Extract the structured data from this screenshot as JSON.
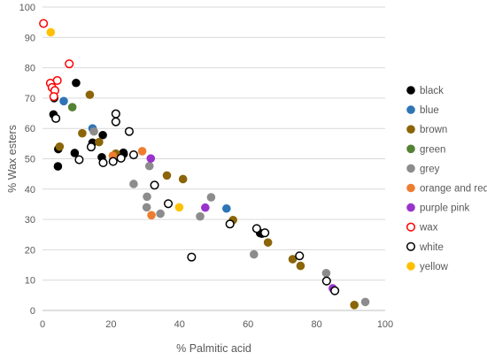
{
  "chart_data": {
    "type": "scatter",
    "xlabel": "% Palmitic acid",
    "ylabel": "% Wax esters",
    "xlim": [
      0,
      100
    ],
    "ylim": [
      0,
      100
    ],
    "x_ticks": [
      "0",
      "20",
      "40",
      "60",
      "80",
      "100"
    ],
    "y_ticks": [
      "0",
      "10",
      "20",
      "30",
      "40",
      "50",
      "60",
      "70",
      "80",
      "90",
      "100"
    ],
    "x_tick_values": [
      0,
      20,
      40,
      60,
      80,
      100
    ],
    "y_tick_values": [
      0,
      10,
      20,
      30,
      40,
      50,
      60,
      70,
      80,
      90,
      100
    ],
    "grid": "horizontal",
    "legend_position": "right",
    "series": [
      {
        "name": "black",
        "color": "#000000",
        "fill": "#000000",
        "stroke": "#000000",
        "points": [
          [
            3.4,
            70
          ],
          [
            3.2,
            64.6
          ],
          [
            4.6,
            53.2
          ],
          [
            4.5,
            47.5
          ],
          [
            9.4,
            51.9
          ],
          [
            9.8,
            75
          ],
          [
            14.6,
            55.3
          ],
          [
            17.3,
            50.5
          ],
          [
            17.6,
            57.8
          ],
          [
            23.6,
            52
          ],
          [
            23.7,
            51.6
          ],
          [
            63.5,
            25.5
          ],
          [
            64,
            25.3
          ]
        ]
      },
      {
        "name": "blue",
        "color": "#2E75B6",
        "fill": "#2E75B6",
        "stroke": "#2E75B6",
        "points": [
          [
            6.2,
            69
          ],
          [
            14.6,
            60
          ],
          [
            53.7,
            33.6
          ]
        ]
      },
      {
        "name": "brown",
        "color": "#8B6508",
        "fill": "#8B6508",
        "stroke": "#8B6508",
        "points": [
          [
            5,
            54
          ],
          [
            11.6,
            58.4
          ],
          [
            13.8,
            71.1
          ],
          [
            16.5,
            55.5
          ],
          [
            21.4,
            51.7
          ],
          [
            36.3,
            44.5
          ],
          [
            41,
            43.3
          ],
          [
            55.6,
            29.8
          ],
          [
            65.8,
            22.4
          ],
          [
            73,
            16.9
          ],
          [
            75.3,
            14.7
          ],
          [
            91,
            1.8
          ]
        ]
      },
      {
        "name": "green",
        "color": "#548235",
        "fill": "#548235",
        "stroke": "#548235",
        "points": [
          [
            8.7,
            67
          ]
        ]
      },
      {
        "name": "grey",
        "color": "#8C8C8C",
        "fill": "#8C8C8C",
        "stroke": "#8C8C8C",
        "points": [
          [
            15,
            59
          ],
          [
            26.6,
            41.7
          ],
          [
            30.5,
            37.5
          ],
          [
            30.4,
            34
          ],
          [
            31.2,
            47.6
          ],
          [
            34.4,
            31.9
          ],
          [
            46,
            31
          ],
          [
            49.2,
            37.3
          ],
          [
            61.7,
            18.5
          ],
          [
            82.8,
            12.3
          ],
          [
            94.2,
            2.8
          ]
        ]
      },
      {
        "name": "orange and red",
        "color": "#ED7D31",
        "fill": "#ED7D31",
        "stroke": "#ED7D31",
        "points": [
          [
            20.5,
            51
          ],
          [
            29.1,
            52.5
          ],
          [
            31.8,
            31.4
          ]
        ]
      },
      {
        "name": "purple pink",
        "color": "#9933CC",
        "fill": "#9933CC",
        "stroke": "#9933CC",
        "points": [
          [
            31.6,
            50.1
          ],
          [
            47.5,
            33.9
          ],
          [
            84.7,
            7.3
          ]
        ]
      },
      {
        "name": "wax",
        "color": "#FF0000",
        "fill": "#ffffff",
        "stroke": "#FF0000",
        "points": [
          [
            0.3,
            94.6
          ],
          [
            7.8,
            81.3
          ],
          [
            4.3,
            75.8
          ],
          [
            2.3,
            74.9
          ],
          [
            2.8,
            73.5
          ],
          [
            3.6,
            72.5
          ],
          [
            3.3,
            70.5
          ]
        ]
      },
      {
        "name": "white",
        "color": "#000000",
        "fill": "#ffffff",
        "stroke": "#000000",
        "points": [
          [
            3.9,
            63.3
          ],
          [
            10.7,
            49.7
          ],
          [
            14.2,
            53.9
          ],
          [
            17.7,
            48.7
          ],
          [
            20.6,
            49.1
          ],
          [
            21.4,
            64.8
          ],
          [
            21.4,
            62.2
          ],
          [
            22.9,
            50.2
          ],
          [
            25.3,
            59
          ],
          [
            26.6,
            51.3
          ],
          [
            32.7,
            41.3
          ],
          [
            36.7,
            35.2
          ],
          [
            43.5,
            17.6
          ],
          [
            54.7,
            28.5
          ],
          [
            62.5,
            27
          ],
          [
            64.9,
            25.6
          ],
          [
            75,
            18
          ],
          [
            82.9,
            9.7
          ],
          [
            85.3,
            6.5
          ]
        ]
      },
      {
        "name": "yellow",
        "color": "#FFC000",
        "fill": "#FFC000",
        "stroke": "#FFC000",
        "points": [
          [
            2.4,
            91.7
          ],
          [
            39.9,
            34
          ]
        ]
      }
    ]
  }
}
